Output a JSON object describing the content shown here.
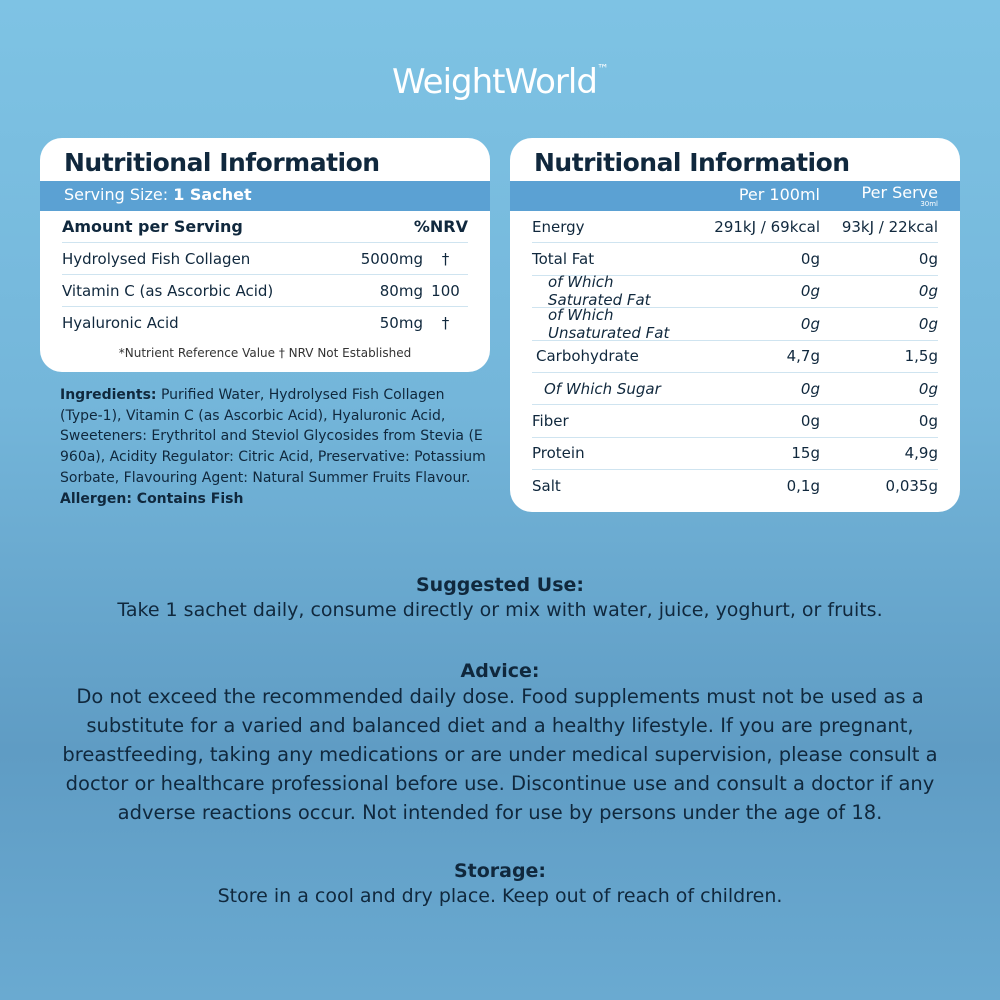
{
  "logo": {
    "text": "WeightWorld",
    "tm": "™"
  },
  "left": {
    "title": "Nutritional Information",
    "serving_label": "Serving Size:",
    "serving_value": "1 Sachet",
    "header": {
      "name": "Amount per Serving",
      "nrv": "%NRV"
    },
    "rows": [
      {
        "name": "Hydrolysed Fish Collagen",
        "amount": "5000mg",
        "nrv": "†"
      },
      {
        "name": "Vitamin C (as Ascorbic Acid)",
        "amount": "80mg",
        "nrv": "100"
      },
      {
        "name": "Hyaluronic Acid",
        "amount": "50mg",
        "nrv": "†"
      }
    ],
    "footnote": "*Nutrient Reference Value † NRV Not Established"
  },
  "right": {
    "title": "Nutritional Information",
    "col1": "Per 100ml",
    "col2": "Per Serve",
    "col2_sub": "30ml",
    "rows": [
      {
        "name": "Energy",
        "a": "291kJ / 69kcal",
        "s": "93kJ / 22kcal"
      },
      {
        "name": "Total Fat",
        "a": "0g",
        "s": "0g"
      },
      {
        "name": "of Which Saturated Fat",
        "a": "0g",
        "s": "0g"
      },
      {
        "name": "of Which Unsaturated Fat",
        "a": "0g",
        "s": "0g"
      },
      {
        "name": "Carbohydrate",
        "a": "4,7g",
        "s": "1,5g"
      },
      {
        "name": "Of Which Sugar",
        "a": "0g",
        "s": "0g"
      },
      {
        "name": "Fiber",
        "a": "0g",
        "s": "0g"
      },
      {
        "name": "Protein",
        "a": "15g",
        "s": "4,9g"
      },
      {
        "name": "Salt",
        "a": "0,1g",
        "s": "0,035g"
      }
    ]
  },
  "ingredients": {
    "label": "Ingredients:",
    "text": " Purified Water, Hydrolysed Fish Collagen (Type-1), Vitamin C (as Ascorbic Acid), Hyaluronic Acid, Sweeteners: Erythritol and Steviol Glycosides from Stevia (E 960a), Acidity Regulator: Citric Acid, Preservative: Potassium Sorbate, Flavouring Agent: Natural Summer Fruits Flavour.",
    "allergen": "Allergen: Contains Fish"
  },
  "suggested": {
    "title": "Suggested Use:",
    "text": "Take 1 sachet daily, consume directly or mix with water, juice, yoghurt, or fruits."
  },
  "advice": {
    "title": "Advice:",
    "text": "Do not exceed the recommended daily dose. Food supplements must not be used as a substitute for a varied and balanced diet and a healthy lifestyle. If you are pregnant, breastfeeding, taking any medications or are under medical supervision, please consult a doctor or healthcare professional before use. Discontinue use and consult a doctor if any adverse reactions occur. Not intended for use by persons under the age of 18."
  },
  "storage": {
    "title": "Storage:",
    "text": "Store in a cool and dry place. Keep out of reach of children."
  }
}
